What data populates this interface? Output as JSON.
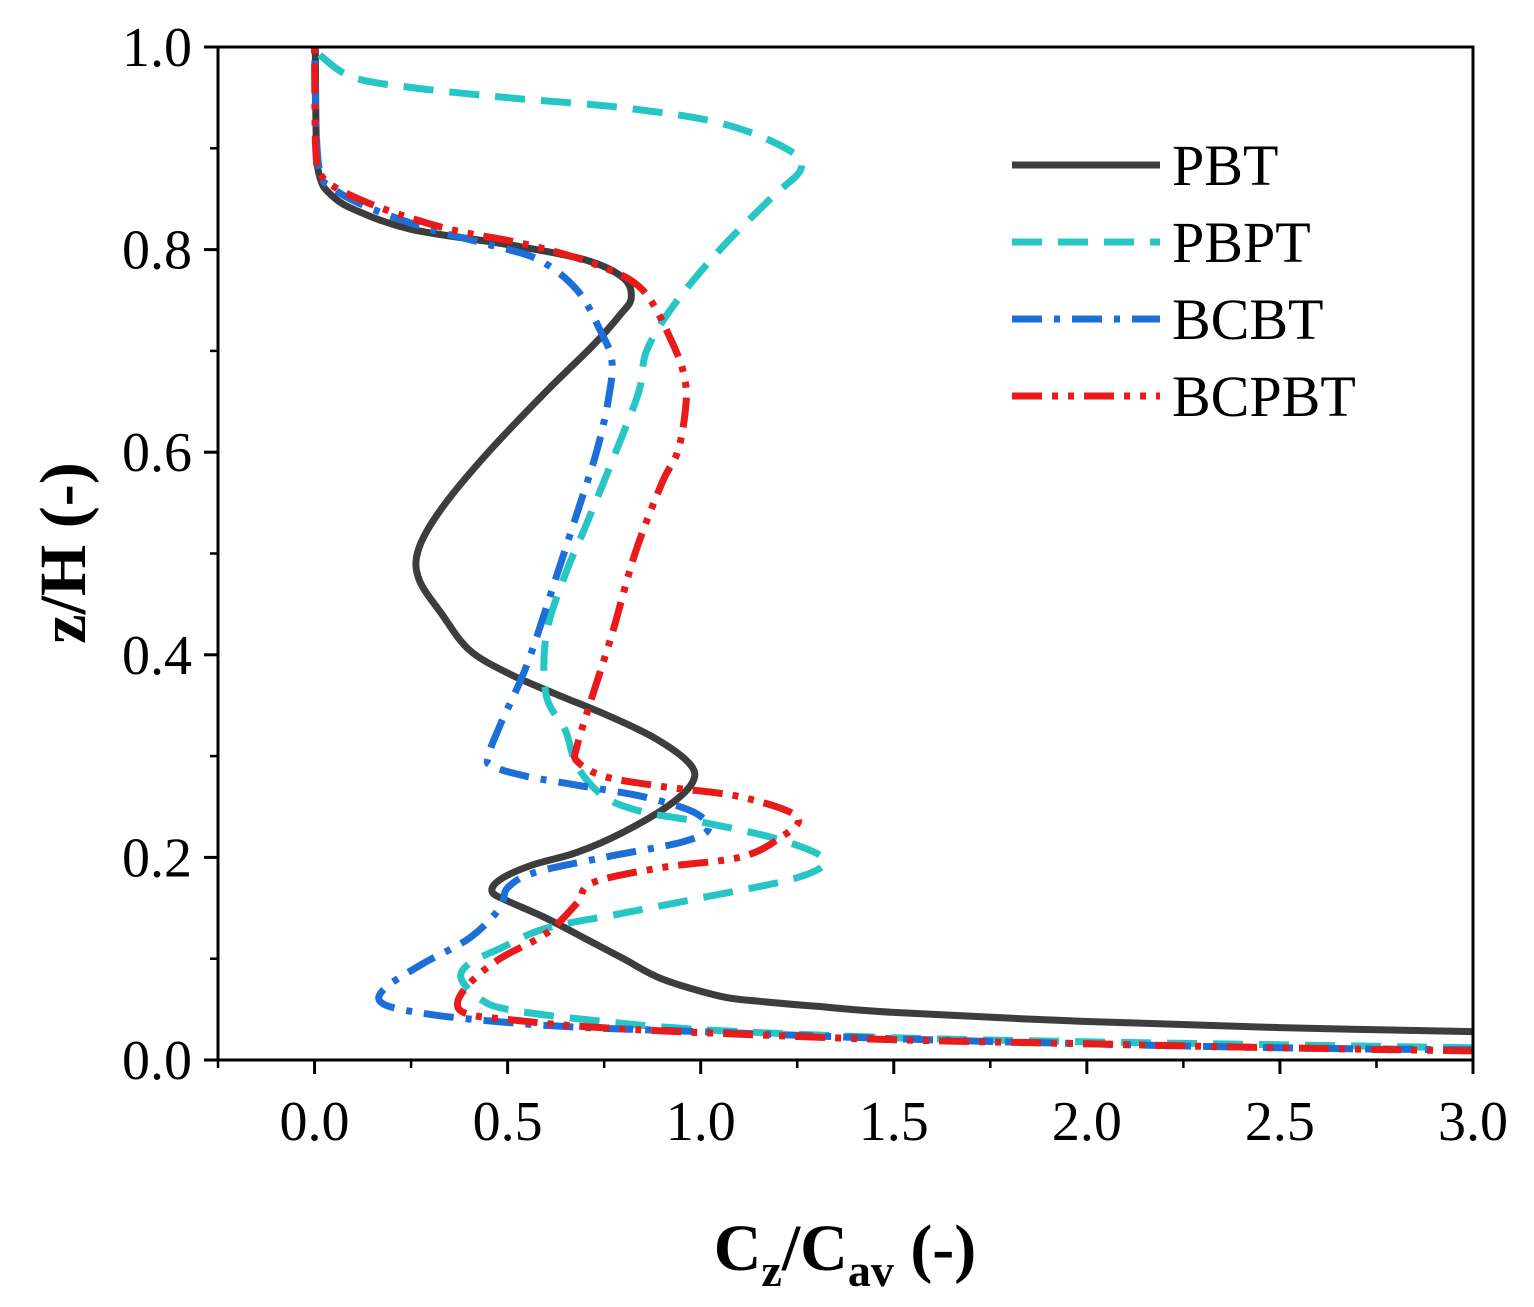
{
  "chart_data": {
    "type": "line",
    "title": "",
    "xlabel": {
      "main": "C",
      "sub1": "z",
      "mid": "/C",
      "sub2": "av",
      "tail": " (-)"
    },
    "ylabel": "z/H (-)",
    "xlim": [
      -0.25,
      3.0
    ],
    "ylim": [
      0.0,
      1.0
    ],
    "xticks": [
      "0.0",
      "0.5",
      "1.0",
      "1.5",
      "2.0",
      "2.5",
      "3.0"
    ],
    "yticks": [
      "0.0",
      "0.2",
      "0.4",
      "0.6",
      "0.8",
      "1.0"
    ],
    "grid": false,
    "legend_position": "top-right",
    "series": [
      {
        "name": "PBT",
        "color": "#3d3d3d",
        "style": "solid",
        "points": [
          [
            3.0,
            0.028
          ],
          [
            2.5,
            0.032
          ],
          [
            2.0,
            0.038
          ],
          [
            1.5,
            0.047
          ],
          [
            1.3,
            0.053
          ],
          [
            1.15,
            0.058
          ],
          [
            1.05,
            0.063
          ],
          [
            0.9,
            0.08
          ],
          [
            0.8,
            0.1
          ],
          [
            0.7,
            0.12
          ],
          [
            0.6,
            0.14
          ],
          [
            0.5,
            0.157
          ],
          [
            0.46,
            0.166
          ],
          [
            0.48,
            0.178
          ],
          [
            0.56,
            0.192
          ],
          [
            0.68,
            0.205
          ],
          [
            0.8,
            0.225
          ],
          [
            0.92,
            0.252
          ],
          [
            0.98,
            0.275
          ],
          [
            0.97,
            0.293
          ],
          [
            0.88,
            0.318
          ],
          [
            0.76,
            0.34
          ],
          [
            0.62,
            0.362
          ],
          [
            0.5,
            0.382
          ],
          [
            0.4,
            0.405
          ],
          [
            0.33,
            0.44
          ],
          [
            0.27,
            0.475
          ],
          [
            0.27,
            0.505
          ],
          [
            0.33,
            0.545
          ],
          [
            0.45,
            0.6
          ],
          [
            0.6,
            0.66
          ],
          [
            0.72,
            0.705
          ],
          [
            0.79,
            0.735
          ],
          [
            0.82,
            0.752
          ],
          [
            0.8,
            0.772
          ],
          [
            0.7,
            0.79
          ],
          [
            0.5,
            0.805
          ],
          [
            0.25,
            0.82
          ],
          [
            0.1,
            0.84
          ],
          [
            0.04,
            0.855
          ],
          [
            0.015,
            0.87
          ],
          [
            0.005,
            0.9
          ],
          [
            0.002,
            1.0
          ]
        ]
      },
      {
        "name": "PBPT",
        "color": "#26c6c6",
        "style": "dash",
        "points": [
          [
            3.0,
            0.012
          ],
          [
            2.5,
            0.015
          ],
          [
            2.0,
            0.018
          ],
          [
            1.5,
            0.022
          ],
          [
            1.0,
            0.03
          ],
          [
            0.7,
            0.04
          ],
          [
            0.5,
            0.05
          ],
          [
            0.43,
            0.06
          ],
          [
            0.38,
            0.08
          ],
          [
            0.4,
            0.095
          ],
          [
            0.48,
            0.11
          ],
          [
            0.6,
            0.13
          ],
          [
            0.8,
            0.145
          ],
          [
            1.0,
            0.16
          ],
          [
            1.25,
            0.18
          ],
          [
            1.32,
            0.198
          ],
          [
            1.2,
            0.218
          ],
          [
            1.0,
            0.235
          ],
          [
            0.85,
            0.245
          ],
          [
            0.75,
            0.26
          ],
          [
            0.68,
            0.29
          ],
          [
            0.65,
            0.325
          ],
          [
            0.6,
            0.36
          ],
          [
            0.6,
            0.42
          ],
          [
            0.65,
            0.48
          ],
          [
            0.7,
            0.525
          ],
          [
            0.78,
            0.6
          ],
          [
            0.84,
            0.66
          ],
          [
            0.86,
            0.7
          ],
          [
            0.93,
            0.745
          ],
          [
            1.05,
            0.8
          ],
          [
            1.18,
            0.85
          ],
          [
            1.26,
            0.88
          ],
          [
            1.22,
            0.9
          ],
          [
            1.05,
            0.925
          ],
          [
            0.8,
            0.94
          ],
          [
            0.5,
            0.95
          ],
          [
            0.25,
            0.96
          ],
          [
            0.1,
            0.97
          ],
          [
            0.02,
            0.99
          ],
          [
            0.0,
            1.0
          ]
        ]
      },
      {
        "name": "BCBT",
        "color": "#1c6fd8",
        "style": "dashdot",
        "points": [
          [
            3.0,
            0.01
          ],
          [
            2.5,
            0.012
          ],
          [
            2.0,
            0.016
          ],
          [
            1.5,
            0.021
          ],
          [
            1.0,
            0.028
          ],
          [
            0.7,
            0.032
          ],
          [
            0.5,
            0.037
          ],
          [
            0.3,
            0.045
          ],
          [
            0.18,
            0.055
          ],
          [
            0.18,
            0.07
          ],
          [
            0.28,
            0.095
          ],
          [
            0.4,
            0.12
          ],
          [
            0.48,
            0.15
          ],
          [
            0.5,
            0.17
          ],
          [
            0.57,
            0.185
          ],
          [
            0.75,
            0.2
          ],
          [
            0.95,
            0.215
          ],
          [
            1.02,
            0.228
          ],
          [
            0.98,
            0.245
          ],
          [
            0.85,
            0.26
          ],
          [
            0.7,
            0.27
          ],
          [
            0.55,
            0.28
          ],
          [
            0.46,
            0.29
          ],
          [
            0.45,
            0.3
          ],
          [
            0.48,
            0.33
          ],
          [
            0.55,
            0.39
          ],
          [
            0.62,
            0.47
          ],
          [
            0.68,
            0.54
          ],
          [
            0.73,
            0.6
          ],
          [
            0.76,
            0.65
          ],
          [
            0.77,
            0.69
          ],
          [
            0.74,
            0.72
          ],
          [
            0.68,
            0.76
          ],
          [
            0.58,
            0.79
          ],
          [
            0.45,
            0.805
          ],
          [
            0.3,
            0.82
          ],
          [
            0.15,
            0.84
          ],
          [
            0.05,
            0.86
          ],
          [
            0.01,
            0.885
          ],
          [
            0.0,
            1.0
          ]
        ]
      },
      {
        "name": "BCPBT",
        "color": "#e81a1a",
        "style": "dashdotdot",
        "points": [
          [
            3.0,
            0.009
          ],
          [
            2.5,
            0.012
          ],
          [
            2.0,
            0.016
          ],
          [
            1.5,
            0.02
          ],
          [
            1.0,
            0.027
          ],
          [
            0.7,
            0.033
          ],
          [
            0.5,
            0.04
          ],
          [
            0.4,
            0.045
          ],
          [
            0.37,
            0.055
          ],
          [
            0.4,
            0.075
          ],
          [
            0.48,
            0.1
          ],
          [
            0.6,
            0.125
          ],
          [
            0.68,
            0.155
          ],
          [
            0.72,
            0.175
          ],
          [
            0.9,
            0.19
          ],
          [
            1.1,
            0.2
          ],
          [
            1.2,
            0.218
          ],
          [
            1.25,
            0.24
          ],
          [
            1.1,
            0.26
          ],
          [
            0.9,
            0.27
          ],
          [
            0.75,
            0.28
          ],
          [
            0.68,
            0.295
          ],
          [
            0.68,
            0.31
          ],
          [
            0.72,
            0.36
          ],
          [
            0.77,
            0.42
          ],
          [
            0.83,
            0.5
          ],
          [
            0.9,
            0.57
          ],
          [
            0.94,
            0.6
          ],
          [
            0.96,
            0.64
          ],
          [
            0.96,
            0.67
          ],
          [
            0.93,
            0.705
          ],
          [
            0.85,
            0.76
          ],
          [
            0.73,
            0.785
          ],
          [
            0.55,
            0.805
          ],
          [
            0.35,
            0.82
          ],
          [
            0.18,
            0.84
          ],
          [
            0.06,
            0.86
          ],
          [
            0.015,
            0.875
          ],
          [
            0.003,
            0.9
          ],
          [
            0.0,
            1.0
          ]
        ]
      }
    ]
  }
}
